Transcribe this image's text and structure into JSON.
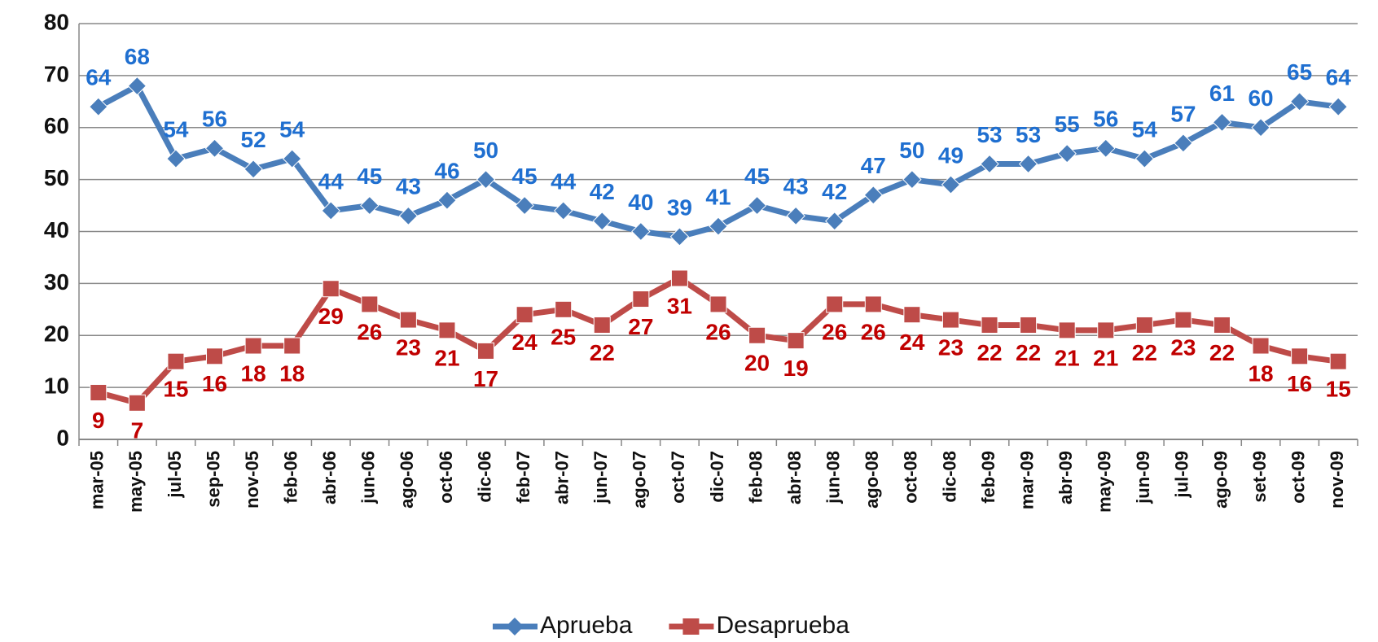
{
  "chart_data": {
    "type": "line",
    "categories": [
      "mar-05",
      "may-05",
      "jul-05",
      "sep-05",
      "nov-05",
      "feb-06",
      "abr-06",
      "jun-06",
      "ago-06",
      "oct-06",
      "dic-06",
      "feb-07",
      "abr-07",
      "jun-07",
      "ago-07",
      "oct-07",
      "dic-07",
      "feb-08",
      "abr-08",
      "jun-08",
      "ago-08",
      "oct-08",
      "dic-08",
      "feb-09",
      "mar-09",
      "abr-09",
      "may-09",
      "jun-09",
      "jul-09",
      "ago-09",
      "set-09",
      "oct-09",
      "nov-09"
    ],
    "series": [
      {
        "name": "Aprueba",
        "color": "#4a7ebb",
        "label_color": "#1f6fd0",
        "marker": "diamond",
        "label_position": "above",
        "values": [
          64,
          68,
          54,
          56,
          52,
          54,
          44,
          45,
          43,
          46,
          50,
          45,
          44,
          42,
          40,
          39,
          41,
          45,
          43,
          42,
          47,
          50,
          49,
          53,
          53,
          55,
          56,
          54,
          57,
          61,
          60,
          65,
          64
        ]
      },
      {
        "name": "Desaprueba",
        "color": "#be4b48",
        "label_color": "#c00000",
        "marker": "square",
        "label_position": "below",
        "values": [
          9,
          7,
          15,
          16,
          18,
          18,
          29,
          26,
          23,
          21,
          17,
          24,
          25,
          22,
          27,
          31,
          26,
          20,
          19,
          26,
          26,
          24,
          23,
          22,
          22,
          21,
          21,
          22,
          23,
          22,
          18,
          16,
          15
        ]
      }
    ],
    "ylim": [
      0,
      80
    ],
    "yticks": [
      0,
      10,
      20,
      30,
      40,
      50,
      60,
      70,
      80
    ],
    "grid": true,
    "legend": "bottom"
  }
}
